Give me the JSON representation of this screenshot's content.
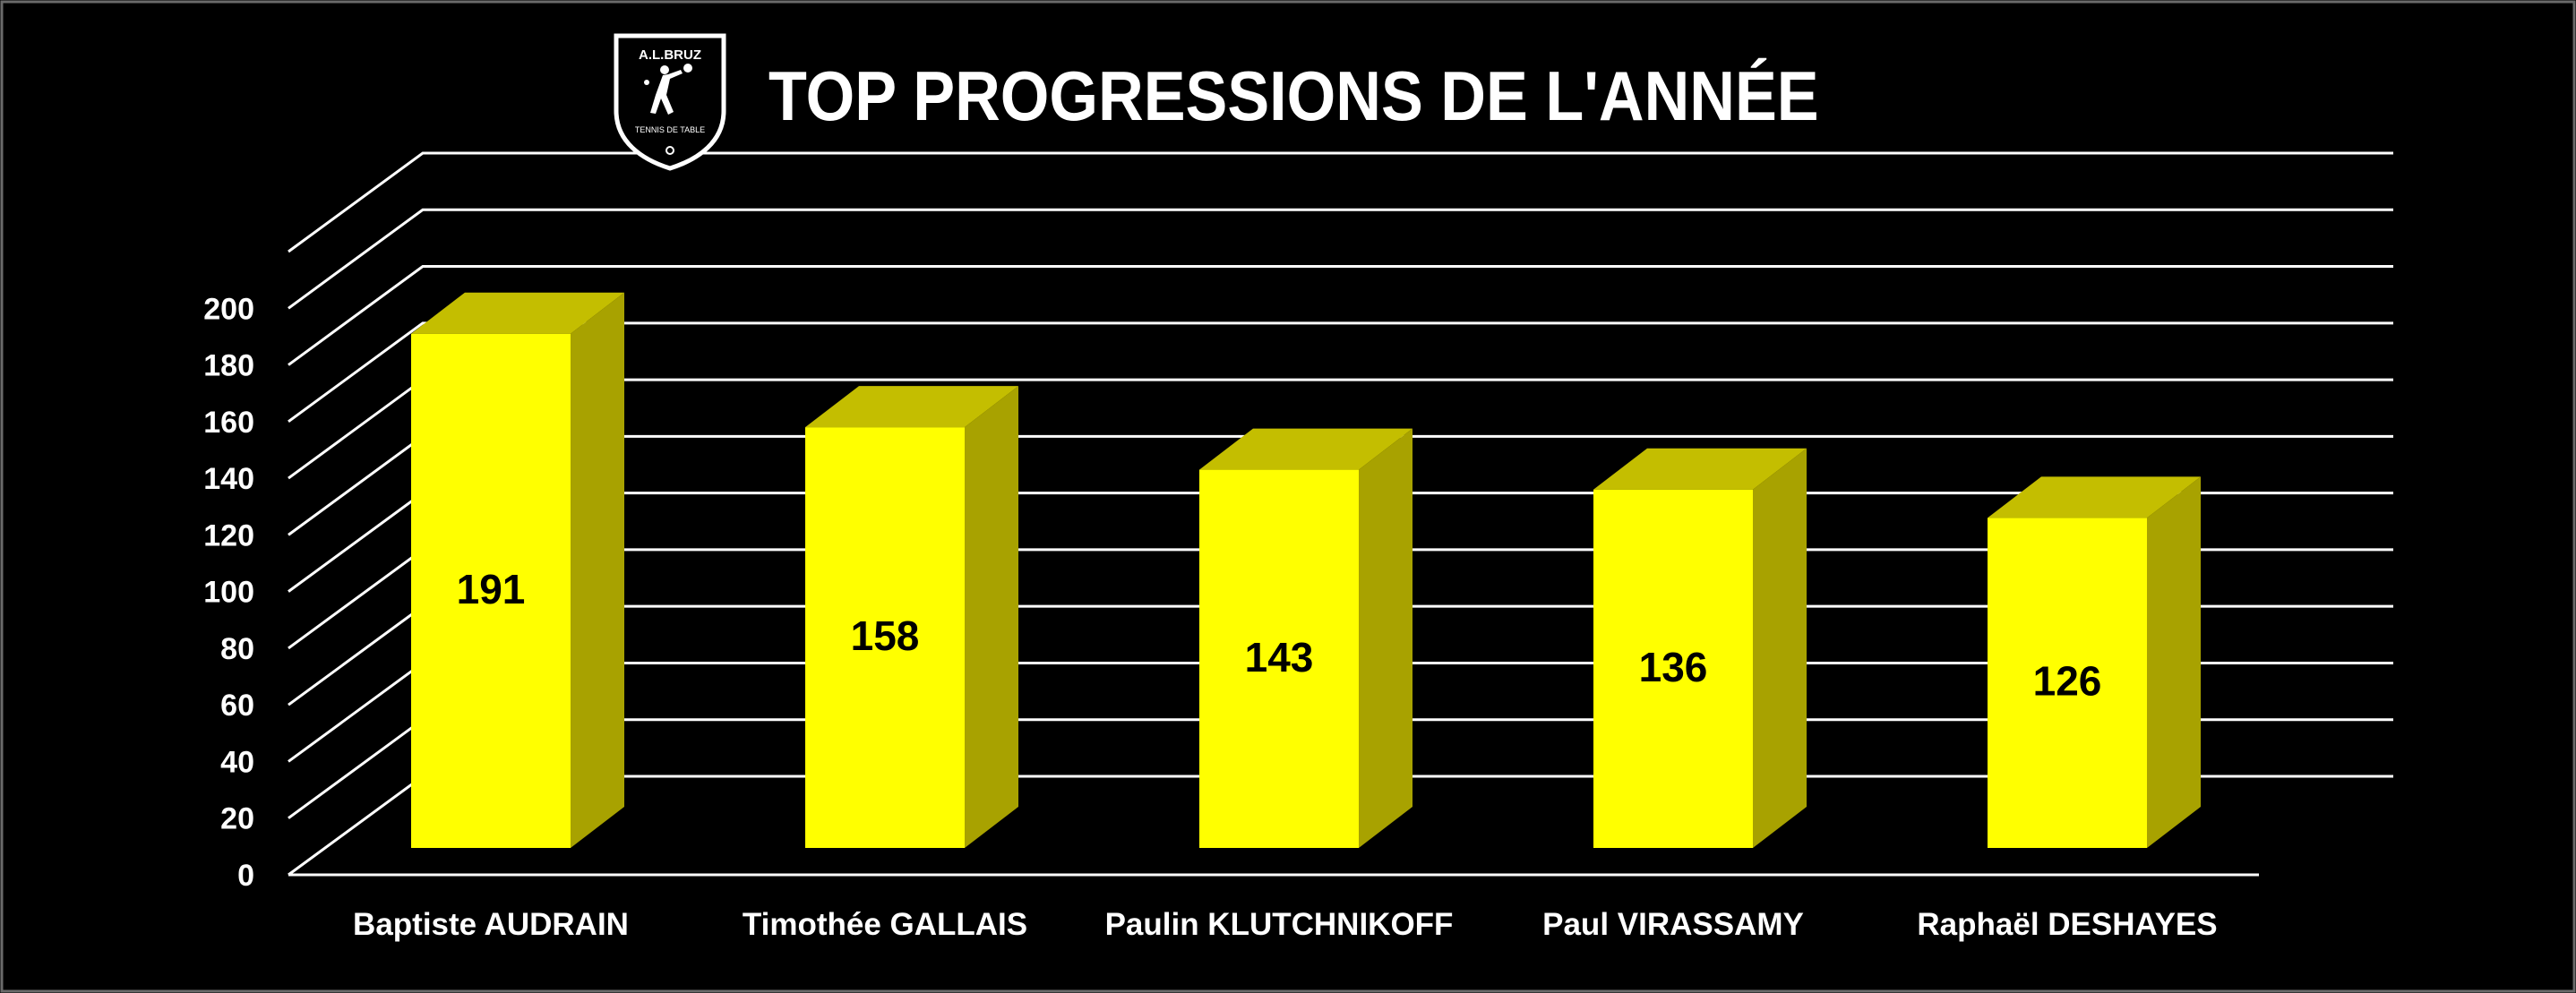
{
  "logo": {
    "top_text": "A.L.BRUZ",
    "bottom_text": "TENNIS DE TABLE",
    "icon": "ping-pong-player-icon"
  },
  "colors": {
    "background": "#000000",
    "bar_front": "#FFFF00",
    "bar_side": "#A8A200",
    "bar_top": "#C4BE00",
    "grid": "#FFFFFF",
    "text": "#FFFFFF",
    "value_label": "#000000"
  },
  "chart_data": {
    "type": "bar",
    "style": "3d-column",
    "title": "TOP PROGRESSIONS DE L'ANNÉE",
    "categories": [
      "Baptiste AUDRAIN",
      "Timothée GALLAIS",
      "Paulin KLUTCHNIKOFF",
      "Paul VIRASSAMY",
      "Raphaël DESHAYES"
    ],
    "values": [
      191,
      158,
      143,
      136,
      126
    ],
    "data_labels": [
      "191",
      "158",
      "143",
      "136",
      "126"
    ],
    "xlabel": "",
    "ylabel": "",
    "ylim": [
      0,
      220
    ],
    "yticks": [
      0,
      20,
      40,
      60,
      80,
      100,
      120,
      140,
      160,
      180,
      200
    ],
    "grid": true,
    "legend": "none"
  }
}
